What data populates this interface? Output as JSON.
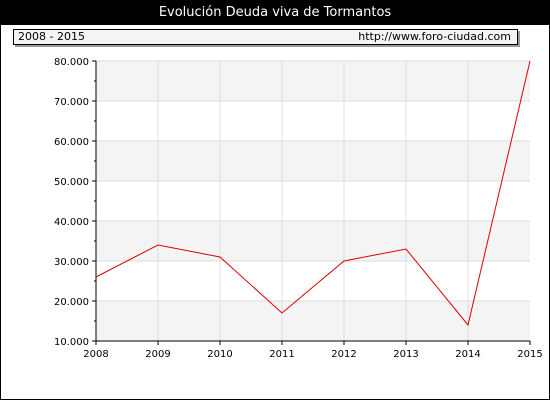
{
  "chart_data": {
    "type": "line",
    "title": "Evolución Deuda viva de Tormantos",
    "period_label": "2008 - 2015",
    "source_label": "http://www.foro-ciudad.com",
    "xlabel": "",
    "ylabel": "",
    "x": [
      "2008",
      "2009",
      "2010",
      "2011",
      "2012",
      "2013",
      "2014",
      "2015"
    ],
    "series": [
      {
        "values": [
          26000,
          34000,
          31000,
          17000,
          30000,
          33000,
          14000,
          80000
        ]
      }
    ],
    "ylim": [
      10000,
      80000
    ],
    "yticks": [
      10000,
      20000,
      30000,
      40000,
      50000,
      60000,
      70000,
      80000
    ],
    "ytick_labels": [
      "10.000",
      "20.000",
      "30.000",
      "40.000",
      "50.000",
      "60.000",
      "70.000",
      "80.000"
    ],
    "grid": true,
    "colors": {
      "line": "#dd0000",
      "band": "#f4f4f4",
      "grid": "#dddddd"
    }
  }
}
